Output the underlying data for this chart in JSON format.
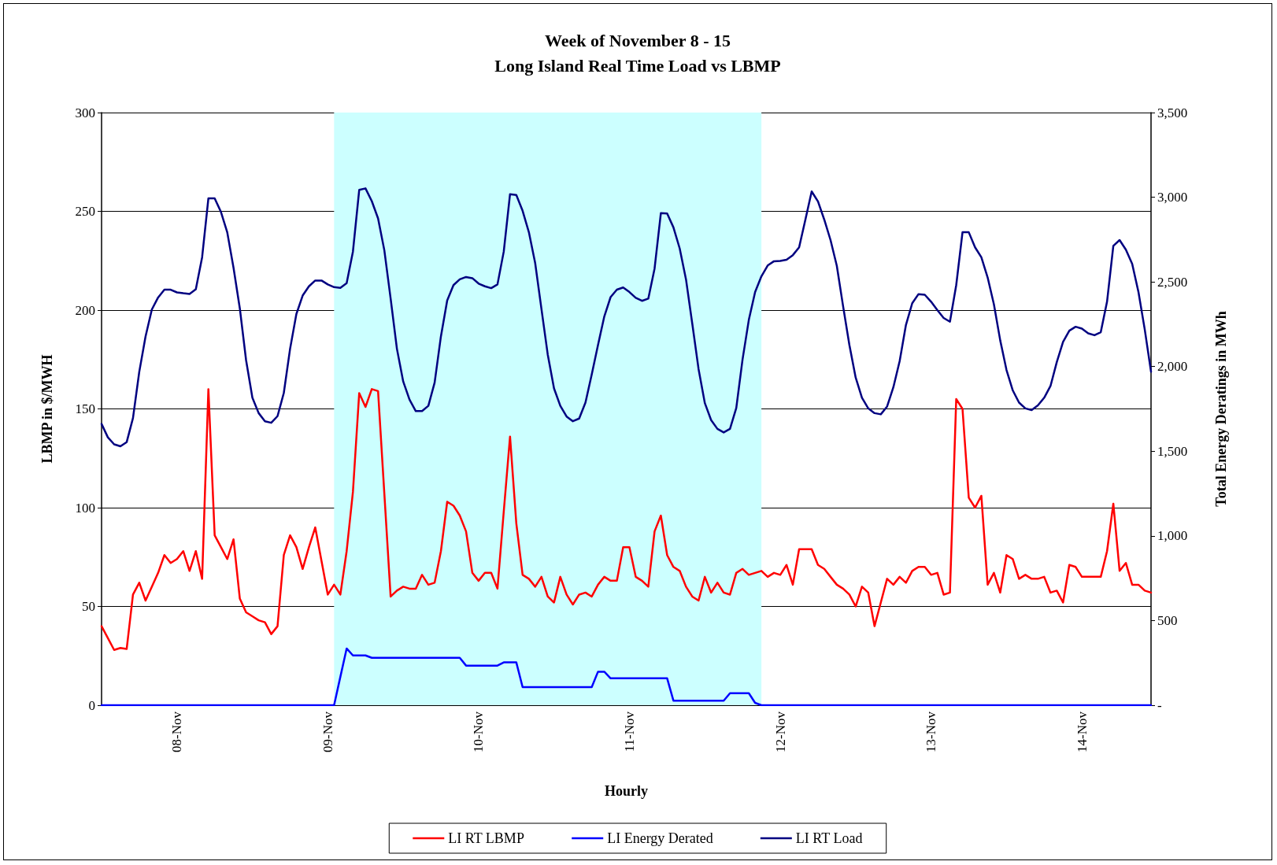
{
  "chart_data": {
    "type": "line",
    "title": "Week of November 8 - 15",
    "subtitle": "Long Island Real Time Load vs LBMP",
    "xlabel": "Hourly",
    "ylabel": "LBMP in $/MWH",
    "y2label": "Total Energy Deratings in MWh",
    "categories": [
      null,
      null,
      null,
      null,
      null,
      null,
      null,
      null,
      null,
      null,
      null,
      null,
      "08-Nov",
      null,
      null,
      null,
      null,
      null,
      null,
      null,
      null,
      null,
      null,
      null,
      null,
      null,
      null,
      null,
      null,
      null,
      null,
      null,
      null,
      null,
      null,
      null,
      "09-Nov",
      null,
      null,
      null,
      null,
      null,
      null,
      null,
      null,
      null,
      null,
      null,
      null,
      null,
      null,
      null,
      null,
      null,
      null,
      null,
      null,
      null,
      null,
      null,
      "10-Nov",
      null,
      null,
      null,
      null,
      null,
      null,
      null,
      null,
      null,
      null,
      null,
      null,
      null,
      null,
      null,
      null,
      null,
      null,
      null,
      null,
      null,
      null,
      null,
      "11-Nov",
      null,
      null,
      null,
      null,
      null,
      null,
      null,
      null,
      null,
      null,
      null,
      null,
      null,
      null,
      null,
      null,
      null,
      null,
      null,
      null,
      null,
      null,
      null,
      "12-Nov",
      null,
      null,
      null,
      null,
      null,
      null,
      null,
      null,
      null,
      null,
      null,
      null,
      null,
      null,
      null,
      null,
      null,
      null,
      null,
      null,
      null,
      null,
      null,
      "13-Nov",
      null,
      null,
      null,
      null,
      null,
      null,
      null,
      null,
      null,
      null,
      null,
      null,
      null,
      null,
      null,
      null,
      null,
      null,
      null,
      null,
      null,
      null,
      null,
      "14-Nov",
      null,
      null,
      null,
      null,
      null,
      null,
      null,
      null,
      null,
      null,
      null
    ],
    "ylim": [
      0,
      300
    ],
    "yticks": [
      0,
      50,
      100,
      150,
      200,
      250,
      300
    ],
    "y2lim": [
      0,
      3500
    ],
    "y2ticks": [
      {
        "value": 0,
        "label": "-"
      },
      500,
      {
        "value": 1000,
        "label": "1,000"
      },
      {
        "value": 1500,
        "label": "1,500"
      },
      {
        "value": 2000,
        "label": "2,000"
      },
      {
        "value": 2500,
        "label": "2,500"
      },
      {
        "value": 3000,
        "label": "3,000"
      },
      {
        "value": 3500,
        "label": "3,500"
      }
    ],
    "grid": "y",
    "legend": "bottom",
    "marker": "none",
    "line_style": "solid",
    "series": [
      {
        "name": "LI RT LBMP",
        "color": "#ff0000",
        "values": [
          40,
          34,
          28,
          29,
          28.5,
          56,
          62,
          53,
          60,
          67,
          76,
          72,
          74,
          78,
          68,
          78,
          64,
          160,
          86,
          80,
          74,
          84,
          54,
          47,
          45,
          43,
          42,
          36,
          40,
          76,
          86,
          80,
          69,
          80,
          90,
          73,
          56,
          61,
          56,
          78,
          108,
          158,
          151,
          160,
          159,
          107,
          55,
          58,
          60,
          59,
          59,
          66,
          61,
          62,
          78,
          103,
          101,
          96,
          88,
          67,
          63,
          67,
          67,
          59,
          98,
          136,
          92,
          66,
          64,
          60,
          65,
          55,
          52,
          65,
          56,
          51,
          56,
          57,
          55,
          61,
          65,
          63,
          63,
          80,
          80,
          65,
          63,
          60,
          88,
          96,
          76,
          70,
          68,
          60,
          55,
          53,
          65,
          57,
          62,
          57,
          56,
          67,
          69,
          66,
          67,
          68,
          65,
          67,
          66,
          71,
          61,
          79,
          79,
          79,
          71,
          69,
          65,
          61,
          59,
          56,
          50,
          60,
          57,
          40,
          52,
          64,
          61,
          65,
          62,
          68,
          70,
          70,
          66,
          67,
          56,
          57,
          155,
          150,
          105,
          100,
          106,
          61,
          67,
          57,
          76,
          74,
          64,
          66,
          64,
          64,
          65,
          57,
          58,
          52,
          71,
          70,
          65,
          65,
          65,
          65,
          78,
          102,
          68,
          72,
          61,
          61,
          58,
          57
        ]
      },
      {
        "name": "LI Energy Derated",
        "color": "#0000ff",
        "axis": "y2",
        "values": [
          0,
          0,
          0,
          0,
          0,
          0,
          0,
          0,
          0,
          0,
          0,
          0,
          0,
          0,
          0,
          0,
          0,
          0,
          0,
          0,
          0,
          0,
          0,
          0,
          0,
          0,
          0,
          0,
          0,
          0,
          0,
          0,
          0,
          0,
          0,
          0,
          0,
          0,
          168,
          335,
          294,
          294,
          294,
          280,
          280,
          280,
          280,
          280,
          280,
          280,
          280,
          280,
          280,
          280,
          280,
          280,
          280,
          280,
          234,
          234,
          234,
          234,
          234,
          234,
          253,
          253,
          253,
          107,
          107,
          107,
          107,
          107,
          107,
          107,
          107,
          107,
          107,
          107,
          107,
          198,
          198,
          159,
          159,
          159,
          159,
          159,
          159,
          159,
          159,
          159,
          159,
          27,
          27,
          27,
          27,
          27,
          27,
          27,
          27,
          27,
          71,
          71,
          71,
          71,
          14,
          0,
          0,
          0,
          0,
          0,
          0,
          0,
          0,
          0,
          0,
          0,
          0,
          0,
          0,
          0,
          0,
          0,
          0,
          0,
          0,
          0,
          0,
          0,
          0,
          0,
          0,
          0,
          0,
          0,
          0,
          0,
          0,
          0,
          0,
          0,
          0,
          0,
          0,
          0,
          0,
          0,
          0,
          0,
          0,
          0,
          0,
          0,
          0,
          0,
          0,
          0,
          0,
          0,
          0,
          0,
          0,
          0,
          0,
          0,
          0,
          0,
          0,
          0
        ]
      },
      {
        "name": "LI RT Load",
        "color": "#000080",
        "axis": "y2",
        "values": [
          1661,
          1582,
          1541,
          1529,
          1554,
          1696,
          1969,
          2178,
          2337,
          2408,
          2454,
          2454,
          2438,
          2433,
          2429,
          2456,
          2645,
          2993,
          2993,
          2913,
          2793,
          2583,
          2344,
          2037,
          1816,
          1725,
          1677,
          1668,
          1707,
          1844,
          2105,
          2310,
          2419,
          2474,
          2508,
          2508,
          2485,
          2469,
          2465,
          2492,
          2679,
          3043,
          3052,
          2977,
          2875,
          2686,
          2401,
          2105,
          1912,
          1805,
          1737,
          1737,
          1768,
          1905,
          2178,
          2390,
          2481,
          2515,
          2529,
          2522,
          2490,
          2474,
          2463,
          2485,
          2679,
          3018,
          3013,
          2920,
          2793,
          2611,
          2340,
          2071,
          1871,
          1768,
          1705,
          1677,
          1693,
          1787,
          1953,
          2128,
          2296,
          2410,
          2454,
          2467,
          2440,
          2406,
          2388,
          2401,
          2579,
          2906,
          2904,
          2822,
          2697,
          2515,
          2253,
          1985,
          1784,
          1684,
          1632,
          1611,
          1632,
          1755,
          2042,
          2276,
          2440,
          2533,
          2597,
          2622,
          2624,
          2631,
          2658,
          2704,
          2868,
          3034,
          2975,
          2868,
          2747,
          2595,
          2356,
          2128,
          1935,
          1816,
          1753,
          1725,
          1718,
          1764,
          1878,
          2032,
          2246,
          2374,
          2428,
          2424,
          2383,
          2333,
          2287,
          2265,
          2481,
          2793,
          2793,
          2704,
          2645,
          2526,
          2367,
          2155,
          1980,
          1859,
          1787,
          1753,
          1743,
          1771,
          1816,
          1885,
          2026,
          2146,
          2212,
          2235,
          2224,
          2196,
          2185,
          2203,
          2383,
          2713,
          2747,
          2690,
          2606,
          2440,
          2219,
          1969
        ]
      }
    ]
  }
}
